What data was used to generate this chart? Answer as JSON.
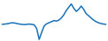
{
  "values": [
    0.0,
    0.05,
    0.1,
    0.2,
    0.3,
    0.25,
    0.15,
    0.05,
    0.0,
    -0.05,
    0.0,
    0.05,
    0.0,
    -0.1,
    -0.8,
    -2.8,
    -1.5,
    -0.3,
    0.1,
    0.3,
    0.5,
    0.7,
    0.6,
    0.8,
    1.2,
    1.8,
    2.6,
    3.2,
    3.8,
    3.0,
    2.4,
    2.8,
    3.4,
    2.8,
    2.0,
    1.6,
    1.2,
    0.8,
    0.5,
    0.3,
    0.15,
    0.05,
    0.0
  ],
  "line_color": "#1a72b8",
  "line_width": 1.1,
  "background_color": "#ffffff"
}
